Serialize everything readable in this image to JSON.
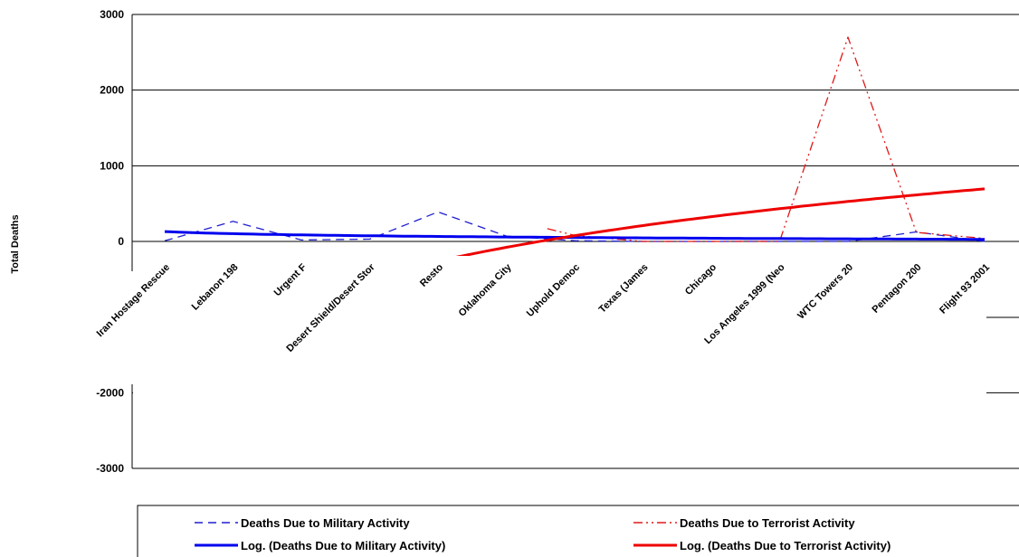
{
  "chart_data": {
    "type": "line",
    "ylabel": "Total Deaths",
    "xlabel": "",
    "ylim": [
      -3000,
      3000
    ],
    "yticks": [
      -3000,
      -2000,
      0,
      1000,
      2000,
      3000
    ],
    "grid": true,
    "legend_position": "bottom",
    "categories": [
      "Iran Hostage Rescue",
      "Lebanon 198",
      "Urgent F",
      "Desert Shield/Desert Stor",
      "Resto",
      "Oklahoma City",
      "Uphold Democ",
      "Texas (James",
      "Chicago",
      "Los Angeles 1999 (Neo",
      "WTC Towers 20",
      "Pentagon 200",
      "Flight 93 2001"
    ],
    "series": [
      {
        "name": "Deaths Due to Military Activity",
        "style": "dashed",
        "color": "#1f1fd0",
        "x": [
          0,
          1,
          2,
          3,
          4,
          5,
          6,
          7,
          8,
          9,
          10,
          11,
          12
        ],
        "values": [
          8,
          265,
          19,
          30,
          390,
          70,
          10,
          0,
          0,
          0,
          0,
          125,
          0
        ]
      },
      {
        "name": "Deaths Due to Terrorist Activity",
        "style": "dash-dot-dot",
        "color": "#e01818",
        "x": [
          5.6,
          6,
          7,
          8,
          9,
          10,
          11,
          12
        ],
        "values": [
          168,
          80,
          0,
          0,
          0,
          2700,
          120,
          40
        ]
      },
      {
        "name": "Log. (Deaths Due to Military Activity)",
        "style": "solid",
        "color": "#0000ee",
        "trend": "log",
        "trend_a": 130,
        "trend_b": -40
      },
      {
        "name": "Log. (Deaths Due to Terrorist Activity)",
        "style": "solid",
        "color": "#ee0000",
        "trend": "log",
        "trend_a": -1870,
        "trend_b": 1000
      }
    ]
  },
  "colors": {
    "military": "#1f1fd0",
    "terrorist": "#e01818",
    "military_trend": "#0000ee",
    "terrorist_trend": "#ee0000"
  }
}
